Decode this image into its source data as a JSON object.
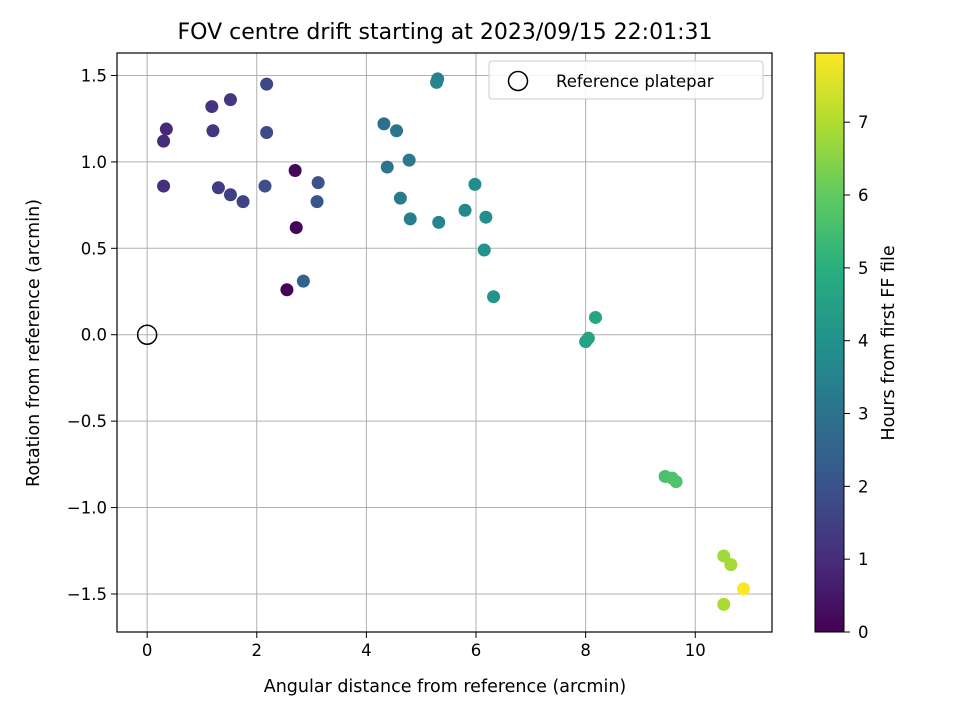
{
  "chart_data": {
    "type": "scatter",
    "title": "FOV centre drift starting at 2023/09/15 22:01:31",
    "xlabel": "Angular distance from reference (arcmin)",
    "ylabel": "Rotation from reference (arcmin)",
    "xlim": [
      -0.55,
      11.4
    ],
    "ylim": [
      -1.72,
      1.63
    ],
    "xticks": [
      0,
      2,
      4,
      6,
      8,
      10
    ],
    "yticks": [
      -1.5,
      -1.0,
      -0.5,
      0.0,
      0.5,
      1.0,
      1.5
    ],
    "xtick_labels": [
      "0",
      "2",
      "4",
      "6",
      "8",
      "10"
    ],
    "ytick_labels": [
      "−1.5",
      "−1.0",
      "−0.5",
      "0.0",
      "0.5",
      "1.0",
      "1.5"
    ],
    "grid": true,
    "legend": {
      "placement": "top-right",
      "label": "Reference platepar"
    },
    "reference_point": {
      "x": 0,
      "y": 0
    },
    "colorbar": {
      "label": "Hours from first FF file",
      "range": [
        0,
        7.95
      ],
      "ticks": [
        0,
        1,
        2,
        3,
        4,
        5,
        6,
        7
      ],
      "tick_labels": [
        "0",
        "1",
        "2",
        "3",
        "4",
        "5",
        "6",
        "7"
      ],
      "colormap": "viridis"
    },
    "points": [
      {
        "x": 2.55,
        "y": 0.26,
        "c": 0.05
      },
      {
        "x": 2.72,
        "y": 0.62,
        "c": 0.1
      },
      {
        "x": 2.7,
        "y": 0.95,
        "c": 0.15
      },
      {
        "x": 0.35,
        "y": 1.19,
        "c": 0.9
      },
      {
        "x": 0.3,
        "y": 1.12,
        "c": 0.95
      },
      {
        "x": 0.3,
        "y": 0.86,
        "c": 1.05
      },
      {
        "x": 1.18,
        "y": 1.32,
        "c": 1.15
      },
      {
        "x": 1.2,
        "y": 1.18,
        "c": 1.25
      },
      {
        "x": 1.52,
        "y": 1.36,
        "c": 1.3
      },
      {
        "x": 1.3,
        "y": 0.85,
        "c": 1.4
      },
      {
        "x": 1.52,
        "y": 0.81,
        "c": 1.5
      },
      {
        "x": 1.75,
        "y": 0.77,
        "c": 1.6
      },
      {
        "x": 2.18,
        "y": 1.45,
        "c": 1.7
      },
      {
        "x": 2.18,
        "y": 1.17,
        "c": 1.8
      },
      {
        "x": 2.15,
        "y": 0.86,
        "c": 1.9
      },
      {
        "x": 3.12,
        "y": 0.88,
        "c": 2.0
      },
      {
        "x": 3.1,
        "y": 0.77,
        "c": 2.1
      },
      {
        "x": 2.85,
        "y": 0.31,
        "c": 2.5
      },
      {
        "x": 4.32,
        "y": 1.22,
        "c": 2.9
      },
      {
        "x": 4.55,
        "y": 1.18,
        "c": 3.0
      },
      {
        "x": 4.38,
        "y": 0.97,
        "c": 3.1
      },
      {
        "x": 4.78,
        "y": 1.01,
        "c": 3.2
      },
      {
        "x": 4.62,
        "y": 0.79,
        "c": 3.3
      },
      {
        "x": 4.8,
        "y": 0.67,
        "c": 3.4
      },
      {
        "x": 5.3,
        "y": 1.48,
        "c": 3.5
      },
      {
        "x": 5.28,
        "y": 1.46,
        "c": 3.55
      },
      {
        "x": 5.32,
        "y": 0.65,
        "c": 3.6
      },
      {
        "x": 5.8,
        "y": 0.72,
        "c": 3.7
      },
      {
        "x": 5.98,
        "y": 0.87,
        "c": 3.8
      },
      {
        "x": 6.18,
        "y": 0.68,
        "c": 3.9
      },
      {
        "x": 6.15,
        "y": 0.49,
        "c": 4.0
      },
      {
        "x": 6.32,
        "y": 0.22,
        "c": 4.1
      },
      {
        "x": 8.0,
        "y": -0.04,
        "c": 4.55
      },
      {
        "x": 8.05,
        "y": -0.02,
        "c": 4.6
      },
      {
        "x": 8.18,
        "y": 0.1,
        "c": 4.65
      },
      {
        "x": 9.45,
        "y": -0.82,
        "c": 5.6
      },
      {
        "x": 9.58,
        "y": -0.83,
        "c": 5.65
      },
      {
        "x": 9.65,
        "y": -0.85,
        "c": 5.7
      },
      {
        "x": 10.52,
        "y": -1.28,
        "c": 6.8
      },
      {
        "x": 10.65,
        "y": -1.33,
        "c": 6.85
      },
      {
        "x": 10.52,
        "y": -1.56,
        "c": 6.9
      },
      {
        "x": 10.88,
        "y": -1.47,
        "c": 7.95
      }
    ]
  }
}
